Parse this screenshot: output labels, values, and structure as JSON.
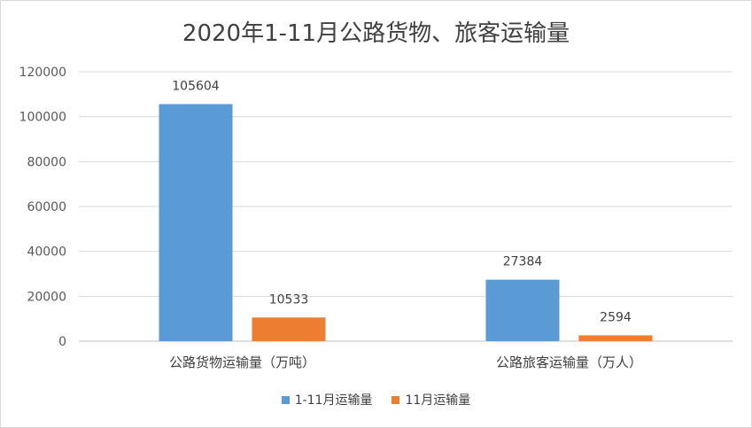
{
  "chart_data": {
    "type": "bar",
    "title": "2020年1-11月公路货物、旅客运输量",
    "categories": [
      "公路货物运输量（万吨）",
      "公路旅客运输量（万人）"
    ],
    "series": [
      {
        "name": "1-11月运输量",
        "values": [
          105604,
          27384
        ],
        "color": "#5b9bd5"
      },
      {
        "name": "11月运输量",
        "values": [
          10533,
          2594
        ],
        "color": "#ed7d31"
      }
    ],
    "ylim": [
      0,
      120000
    ],
    "yticks": [
      0,
      20000,
      40000,
      60000,
      80000,
      100000,
      120000
    ],
    "grid": true,
    "legend": "bottom"
  }
}
